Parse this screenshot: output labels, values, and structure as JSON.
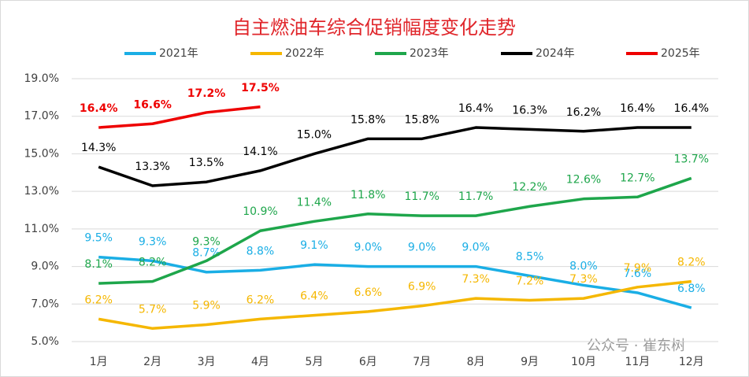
{
  "chart_data": {
    "type": "line",
    "title": "自主燃油车综合促销幅度变化走势",
    "categories": [
      "1月",
      "2月",
      "3月",
      "4月",
      "5月",
      "6月",
      "7月",
      "8月",
      "9月",
      "10月",
      "11月",
      "12月"
    ],
    "series": [
      {
        "name": "2021年",
        "color": "#1aaee5",
        "values": [
          9.5,
          9.3,
          8.7,
          8.8,
          9.1,
          9.0,
          9.0,
          9.0,
          8.5,
          8.0,
          7.6,
          6.8
        ],
        "value_labels": [
          "9.5%",
          "9.3%",
          "8.7%",
          "8.8%",
          "9.1%",
          "9.0%",
          "9.0%",
          "9.0%",
          "8.5%",
          "8.0%",
          "7.6%",
          "6.8%"
        ]
      },
      {
        "name": "2022年",
        "color": "#f5b700",
        "values": [
          6.2,
          5.7,
          5.9,
          6.2,
          6.4,
          6.6,
          6.9,
          7.3,
          7.2,
          7.3,
          7.9,
          8.2
        ],
        "value_labels": [
          "6.2%",
          "5.7%",
          "5.9%",
          "6.2%",
          "6.4%",
          "6.6%",
          "6.9%",
          "7.3%",
          "7.2%",
          "7.3%",
          "7.9%",
          "8.2%"
        ]
      },
      {
        "name": "2023年",
        "color": "#1ea64b",
        "values": [
          8.1,
          8.2,
          9.3,
          10.9,
          11.4,
          11.8,
          11.7,
          11.7,
          12.2,
          12.6,
          12.7,
          13.7
        ],
        "value_labels": [
          "8.1%",
          "8.2%",
          "9.3%",
          "10.9%",
          "11.4%",
          "11.8%",
          "11.7%",
          "11.7%",
          "12.2%",
          "12.6%",
          "12.7%",
          "13.7%"
        ]
      },
      {
        "name": "2024年",
        "color": "#000000",
        "values": [
          14.3,
          13.3,
          13.5,
          14.1,
          15.0,
          15.8,
          15.8,
          16.4,
          16.3,
          16.2,
          16.4,
          16.4
        ],
        "value_labels": [
          "14.3%",
          "13.3%",
          "13.5%",
          "14.1%",
          "15.0%",
          "15.8%",
          "15.8%",
          "16.4%",
          "16.3%",
          "16.2%",
          "16.4%",
          "16.4%"
        ]
      },
      {
        "name": "2025年",
        "color": "#ee0000",
        "values": [
          16.4,
          16.6,
          17.2,
          17.5,
          null,
          null,
          null,
          null,
          null,
          null,
          null,
          null
        ],
        "value_labels": [
          "16.4%",
          "16.6%",
          "17.2%",
          "17.5%",
          null,
          null,
          null,
          null,
          null,
          null,
          null,
          null
        ]
      }
    ],
    "ylim": [
      5,
      19
    ],
    "yticks": [
      {
        "value": 5,
        "label": "5.0%"
      },
      {
        "value": 7,
        "label": "7.0%"
      },
      {
        "value": 9,
        "label": "9.0%"
      },
      {
        "value": 11,
        "label": "11.0%"
      },
      {
        "value": 13,
        "label": "13.0%"
      },
      {
        "value": 15,
        "label": "15.0%"
      },
      {
        "value": 17,
        "label": "17.0%"
      },
      {
        "value": 19,
        "label": "19.0%"
      }
    ],
    "grid": true,
    "legend": "top",
    "annotation": "公众号 · 崔东树"
  }
}
